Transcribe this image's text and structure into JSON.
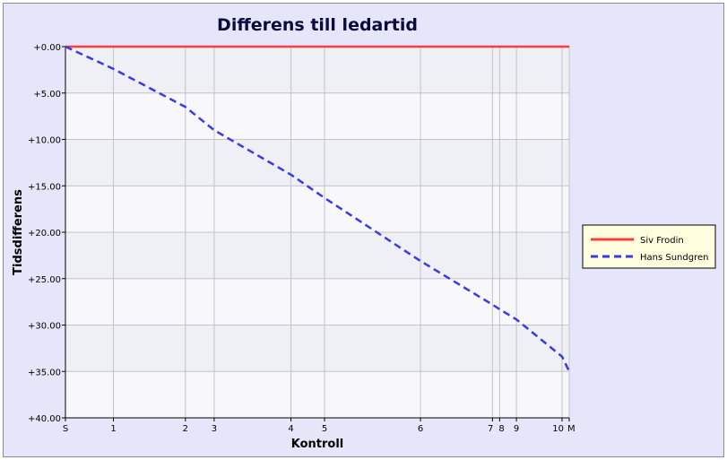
{
  "chart_data": {
    "type": "line",
    "title": "Differens till ledartid",
    "xlabel": "Kontroll",
    "ylabel": "Tidsdifferens",
    "x_categories": [
      "S",
      "1",
      "2",
      "3",
      "4",
      "5",
      "6",
      "7",
      "8",
      "9",
      "10",
      "M"
    ],
    "x_positions": [
      0,
      1,
      2.5,
      3.1,
      4.7,
      5.4,
      7.4,
      8.9,
      9.05,
      9.4,
      10.35,
      10.5
    ],
    "y_ticks": [
      "+0.00",
      "+5.00",
      "+10.00",
      "+15.00",
      "+20.00",
      "+25.00",
      "+30.00",
      "+35.00",
      "+40.00"
    ],
    "ylim": [
      0,
      40
    ],
    "y_inverted": true,
    "grid": true,
    "legend_position": "right",
    "series": [
      {
        "name": "Siv Frodin",
        "color": "#ff3b3b",
        "dash": "solid",
        "values": [
          0,
          0,
          0,
          0,
          0,
          0,
          0,
          0,
          0,
          0,
          0,
          0
        ]
      },
      {
        "name": "Hans Sundgren",
        "color": "#3a3ae6",
        "dash": "dashed",
        "values": [
          0,
          2.4,
          6.5,
          9.0,
          13.8,
          16.3,
          23.1,
          27.8,
          28.3,
          29.4,
          33.4,
          35.0
        ]
      }
    ]
  }
}
